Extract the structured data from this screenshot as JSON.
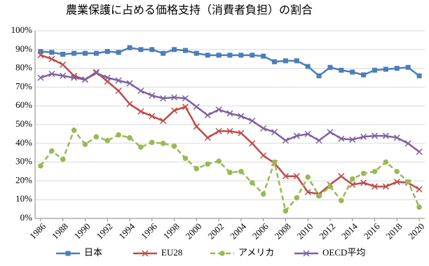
{
  "chart_data": {
    "type": "line",
    "title": "農業保護に占める価格支持（消費者負担）の割合",
    "x": [
      1986,
      1987,
      1988,
      1989,
      1990,
      1991,
      1992,
      1993,
      1994,
      1995,
      1996,
      1997,
      1998,
      1999,
      2000,
      2001,
      2002,
      2003,
      2004,
      2005,
      2006,
      2007,
      2008,
      2009,
      2010,
      2011,
      2012,
      2013,
      2014,
      2015,
      2016,
      2017,
      2018,
      2019,
      2020
    ],
    "xlim": [
      1985.5,
      2020.5
    ],
    "xticks": [
      1986,
      1988,
      1990,
      1992,
      1994,
      1996,
      1998,
      2000,
      2002,
      2004,
      2006,
      2008,
      2010,
      2012,
      2014,
      2016,
      2018,
      2020
    ],
    "ylim": [
      0,
      100
    ],
    "yticks": [
      {
        "value": 0,
        "label": "0%"
      },
      {
        "value": 10,
        "label": "10%"
      },
      {
        "value": 20,
        "label": "20%"
      },
      {
        "value": 30,
        "label": "30%"
      },
      {
        "value": 40,
        "label": "40%"
      },
      {
        "value": 50,
        "label": "50%"
      },
      {
        "value": 60,
        "label": "60%"
      },
      {
        "value": 70,
        "label": "70%"
      },
      {
        "value": 80,
        "label": "80%"
      },
      {
        "value": 90,
        "label": "90%"
      },
      {
        "value": 100,
        "label": "100%"
      }
    ],
    "grid": true,
    "legend": "bottom",
    "series": [
      {
        "name": "日本",
        "color": "#4a7ebb",
        "marker": "square",
        "dashed": false,
        "values": [
          89,
          88.5,
          87.5,
          88,
          88,
          88,
          89,
          88.5,
          91,
          90,
          90,
          88,
          90,
          89.5,
          88,
          87,
          87,
          87,
          87,
          87,
          86.5,
          83.5,
          84,
          84,
          81,
          76,
          80.5,
          79,
          78,
          76.5,
          79,
          79.5,
          80,
          80.5,
          76
        ]
      },
      {
        "name": "EU28",
        "color": "#be4b48",
        "marker": "x",
        "dashed": false,
        "values": [
          87,
          85,
          82,
          76,
          74,
          78,
          73,
          68,
          61,
          57,
          54.5,
          52,
          57.5,
          59.5,
          49,
          43,
          46.5,
          46.5,
          45.5,
          40,
          33.5,
          29.5,
          22.5,
          22.5,
          14,
          13,
          18,
          22.5,
          18,
          19,
          17,
          17,
          19.5,
          19,
          15.5
        ]
      },
      {
        "name": "アメリカ",
        "color": "#98b954",
        "marker": "circle",
        "dashed": true,
        "values": [
          28,
          36,
          31.5,
          47,
          39.5,
          43.5,
          41.5,
          44.5,
          43,
          38,
          40.5,
          40,
          38.5,
          32,
          26.5,
          29,
          30.5,
          24.5,
          25,
          19,
          13,
          30,
          4,
          11,
          22,
          12,
          17,
          9.5,
          21,
          24,
          25,
          30,
          25,
          19.5,
          6
        ]
      },
      {
        "name": "OECD平均",
        "color": "#7d60a0",
        "marker": "x",
        "dashed": false,
        "values": [
          75,
          77,
          76,
          75,
          74,
          77.5,
          75,
          73.5,
          72,
          68,
          65.5,
          64,
          64.5,
          64,
          59.5,
          55,
          58,
          56,
          54.5,
          52,
          48,
          46,
          41.5,
          44,
          45,
          41.5,
          46,
          42.5,
          42,
          43.5,
          44,
          44,
          43,
          40,
          35.5
        ]
      }
    ]
  }
}
